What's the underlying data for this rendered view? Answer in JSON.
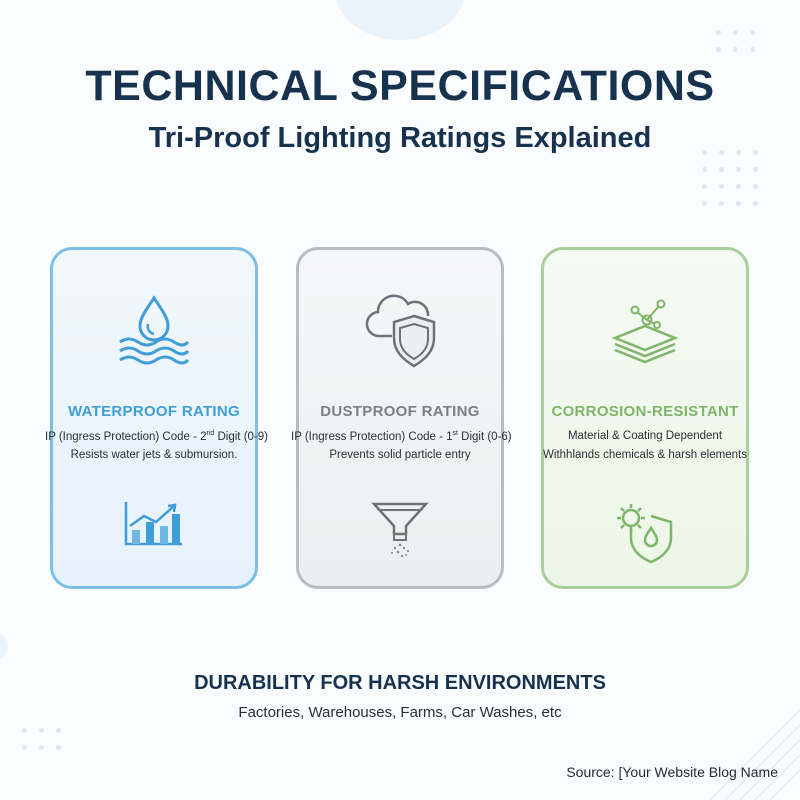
{
  "header": {
    "title": "TECHNICAL SPECIFICATIONS",
    "subtitle": "Tri-Proof Lighting Ratings Explained"
  },
  "cards": [
    {
      "title": "WATERPROOF RATING",
      "line1_prefix": "IP (Ingress Protection) Code - 2",
      "line1_sup": "nd",
      "line1_suffix": " Digit (0-9)",
      "line2": "Resists water jets & submursion.",
      "icon_top": "water-drop-waves-icon",
      "icon_bottom": "bar-chart-trend-icon",
      "color": "#3f9ed8"
    },
    {
      "title": "DUSTPROOF RATING",
      "line1_prefix": "IP (Ingress Protection) Code - 1",
      "line1_sup": "st",
      "line1_suffix": " Digit (0-6)",
      "line2": "Prevents solid particle entry",
      "icon_top": "cloud-shield-icon",
      "icon_bottom": "funnel-filter-icon",
      "color": "#7b8086"
    },
    {
      "title": "CORROSION-RESISTANT",
      "line1": "Material & Coating Dependent",
      "line2": "Withhlands chemicals & harsh elements",
      "icon_top": "layers-molecule-icon",
      "icon_bottom": "gear-shield-drop-icon",
      "color": "#7fb56a"
    }
  ],
  "footer": {
    "title": "DURABILITY FOR HARSH ENVIRONMENTS",
    "subtitle": "Factories, Warehouses, Farms, Car Washes, etc",
    "source": "Source: [Your Website Blog Name"
  }
}
